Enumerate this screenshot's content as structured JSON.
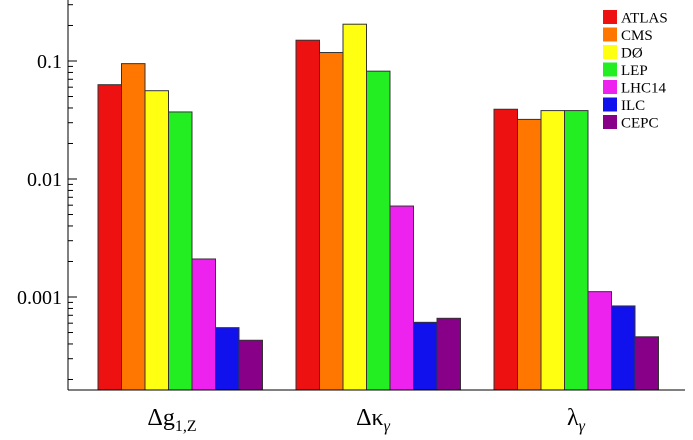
{
  "chart_data": {
    "type": "bar",
    "title": "",
    "xlabel": "",
    "ylabel": "",
    "yscale": "log",
    "ylim": [
      0.00015,
      0.45
    ],
    "yticks": [
      {
        "value": 0.001,
        "label": "0.001"
      },
      {
        "value": 0.01,
        "label": "0.01"
      },
      {
        "value": 0.1,
        "label": "0.1"
      }
    ],
    "categories": [
      {
        "base": "Δg",
        "sub": "1,Z"
      },
      {
        "base": "Δκ",
        "sub": "γ"
      },
      {
        "base": "λ",
        "sub": "γ"
      }
    ],
    "series": [
      {
        "name": "ATLAS",
        "color": "#ee1111",
        "values": [
          0.063,
          0.15,
          0.039
        ]
      },
      {
        "name": "CMS",
        "color": "#ff7700",
        "values": [
          0.095,
          0.118,
          0.032
        ]
      },
      {
        "name": "DØ",
        "color": "#ffff11",
        "values": [
          0.056,
          0.205,
          0.038
        ]
      },
      {
        "name": "LEP",
        "color": "#22ee22",
        "values": [
          0.037,
          0.082,
          0.038
        ]
      },
      {
        "name": "LHC14",
        "color": "#ee22ee",
        "values": [
          0.0021,
          0.0059,
          0.00111
        ]
      },
      {
        "name": "ILC",
        "color": "#1111ee",
        "values": [
          0.00055,
          0.00061,
          0.00084
        ]
      },
      {
        "name": "CEPC",
        "color": "#880088",
        "values": [
          0.00043,
          0.00066,
          0.00046
        ]
      }
    ],
    "legend": "top-right",
    "grid": false
  }
}
